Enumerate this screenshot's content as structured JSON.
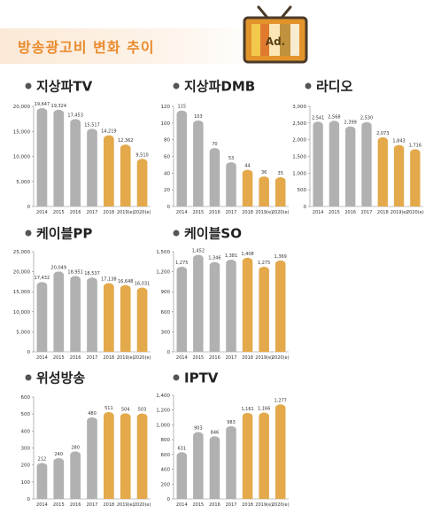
{
  "header": {
    "title": "방송광고비 변화 추이",
    "tv_icon": "tv-ad-icon",
    "tv_label": "Ad."
  },
  "colors": {
    "past_bar": "#b1b1b1",
    "forecast_bar": "#e3a94b",
    "accent": "#e98a2c",
    "axis_text": "#333333",
    "grid": "#d9d9d9"
  },
  "chart_data": [
    {
      "type": "bar",
      "title": "지상파TV",
      "categories": [
        "2014",
        "2015",
        "2016",
        "2017",
        "2018",
        "2019(e)",
        "2020(e)"
      ],
      "values": [
        19647,
        19324,
        17453,
        15517,
        14219,
        12362,
        9510
      ],
      "labels": [
        "19,647",
        "19,324",
        "17,453",
        "15,517",
        "14,219",
        "12,362",
        "9,510"
      ],
      "ylim": [
        0,
        20000
      ],
      "yticks": [
        0,
        5000,
        10000,
        15000,
        20000
      ],
      "ytick_labels": [
        "0",
        "5,000",
        "10,000",
        "15,000",
        "20,000"
      ],
      "forecast_from_index": 4
    },
    {
      "type": "bar",
      "title": "지상파DMB",
      "categories": [
        "2014",
        "2015",
        "2016",
        "2017",
        "2018",
        "2019(e)",
        "2020(e)"
      ],
      "values": [
        115,
        103,
        70,
        53,
        44,
        36,
        35
      ],
      "labels": [
        "115",
        "103",
        "70",
        "53",
        "44",
        "36",
        "35"
      ],
      "ylim": [
        0,
        120
      ],
      "yticks": [
        0,
        20,
        40,
        60,
        80,
        100,
        120
      ],
      "ytick_labels": [
        "0",
        "20",
        "40",
        "60",
        "80",
        "100",
        "120"
      ],
      "forecast_from_index": 4
    },
    {
      "type": "bar",
      "title": "라디오",
      "categories": [
        "2014",
        "2015",
        "2016",
        "2017",
        "2018",
        "2019(e)",
        "2020(e)"
      ],
      "values": [
        2541,
        2568,
        2399,
        2530,
        2073,
        1843,
        1716
      ],
      "labels": [
        "2,541",
        "2,568",
        "2,399",
        "2,530",
        "2,073",
        "1,843",
        "1,716"
      ],
      "ylim": [
        0,
        3000
      ],
      "yticks": [
        0,
        500,
        1000,
        1500,
        2000,
        2500,
        3000
      ],
      "ytick_labels": [
        "0",
        "500",
        "1,000",
        "1,500",
        "2,000",
        "2,500",
        "3,000"
      ],
      "forecast_from_index": 4
    },
    {
      "type": "bar",
      "title": "케이블PP",
      "categories": [
        "2014",
        "2015",
        "2016",
        "2017",
        "2018",
        "2019(e)",
        "2020(e)"
      ],
      "values": [
        17432,
        20049,
        18951,
        18537,
        17138,
        16648,
        16031
      ],
      "labels": [
        "17,432",
        "20,049",
        "18,951",
        "18,537",
        "17,138",
        "16,648",
        "16,031"
      ],
      "ylim": [
        0,
        25000
      ],
      "yticks": [
        0,
        5000,
        10000,
        15000,
        20000,
        25000
      ],
      "ytick_labels": [
        "0",
        "5,000",
        "10,000",
        "15,000",
        "20,000",
        "25,000"
      ],
      "forecast_from_index": 4
    },
    {
      "type": "bar",
      "title": "케이블SO",
      "categories": [
        "2014",
        "2015",
        "2016",
        "2017",
        "2018",
        "2019(e)",
        "2020(e)"
      ],
      "values": [
        1275,
        1452,
        1346,
        1381,
        1408,
        1275,
        1369
      ],
      "labels": [
        "1,275",
        "1,452",
        "1,346",
        "1,381",
        "1,408",
        "1,275",
        "1,369"
      ],
      "ylim": [
        1000,
        1500
      ],
      "yticks": [
        0,
        300,
        600,
        900,
        1200,
        1500
      ],
      "ytick_labels": [
        "0",
        "300",
        "600",
        "900",
        "1,200",
        "1,500"
      ],
      "forecast_from_index": 4
    },
    {
      "type": "bar",
      "title": "위성방송",
      "categories": [
        "2014",
        "2015",
        "2016",
        "2017",
        "2018",
        "2019(e)",
        "2020(e)"
      ],
      "values": [
        212,
        240,
        280,
        480,
        511,
        504,
        503
      ],
      "labels": [
        "212",
        "240",
        "280",
        "480",
        "511",
        "504",
        "503"
      ],
      "ylim": [
        0,
        600
      ],
      "yticks": [
        0,
        100,
        200,
        300,
        400,
        500,
        600
      ],
      "ytick_labels": [
        "0",
        "100",
        "200",
        "300",
        "400",
        "500",
        "600"
      ],
      "forecast_from_index": 4
    },
    {
      "type": "bar",
      "title": "IPTV",
      "categories": [
        "2014",
        "2015",
        "2016",
        "2017",
        "2018",
        "2019(e)",
        "2020(e)"
      ],
      "values": [
        631,
        903,
        846,
        983,
        1161,
        1166,
        1277
      ],
      "labels": [
        "631",
        "903",
        "846",
        "983",
        "1,161",
        "1,166",
        "1,277"
      ],
      "ylim": [
        0,
        1400
      ],
      "yticks": [
        0,
        200,
        400,
        600,
        800,
        1000,
        1200,
        1400
      ],
      "ytick_labels": [
        "0",
        "200",
        "400",
        "600",
        "800",
        "1,000",
        "1,200",
        "1,400"
      ],
      "forecast_from_index": 4
    }
  ]
}
